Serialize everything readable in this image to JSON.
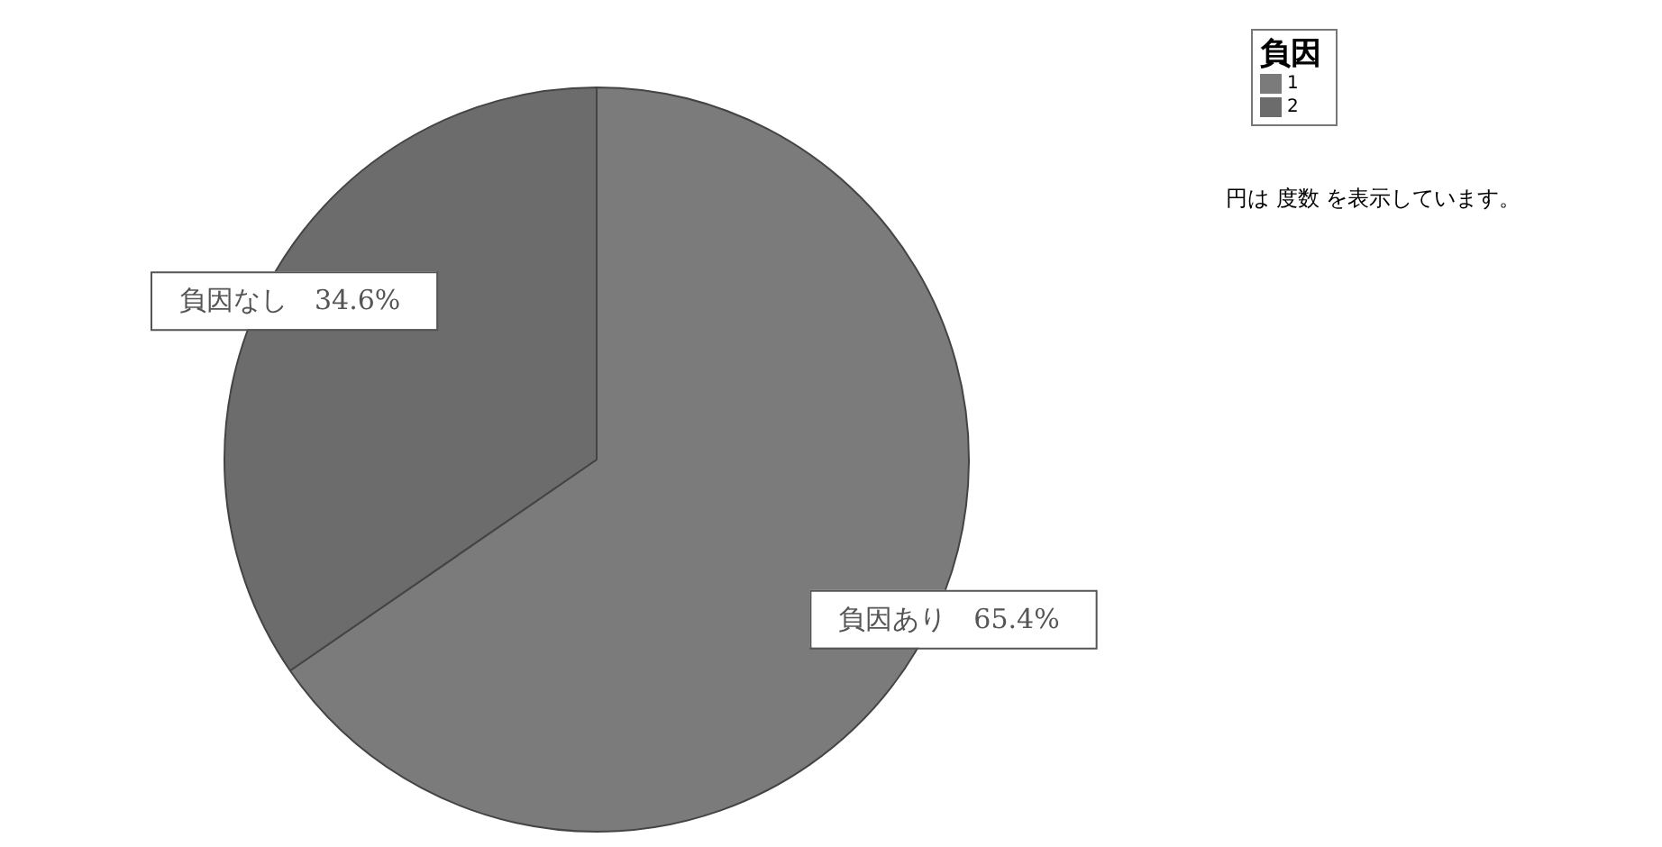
{
  "chart_data": {
    "type": "pie",
    "legend_title": "負因",
    "legend": "top right",
    "categories": [
      "1",
      "2"
    ],
    "values": [
      65.4,
      34.6
    ],
    "colors": [
      "#7b7b7b",
      "#6c6c6c"
    ],
    "value_labels": [
      "負因あり　65.4%",
      "負因なし　34.6%"
    ],
    "annotations": [
      "円は 度数 を表示しています。"
    ]
  }
}
